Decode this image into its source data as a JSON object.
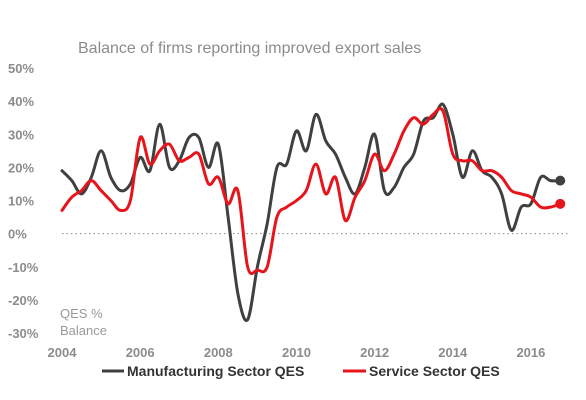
{
  "chart_data": {
    "type": "line",
    "title": "Balance of firms reporting improved export sales",
    "ylabel": "QES % Balance",
    "unit_lines": [
      "QES %",
      "Balance"
    ],
    "xlabel": "",
    "xlim": [
      2004,
      2017
    ],
    "ylim": [
      -30,
      50
    ],
    "x_ticks": [
      2004,
      2006,
      2008,
      2010,
      2012,
      2014,
      2016
    ],
    "y_ticks": [
      -30,
      -20,
      -10,
      0,
      10,
      20,
      30,
      40,
      50
    ],
    "y_tick_labels": [
      "-30%",
      "-20%",
      "-10%",
      "0%",
      "10%",
      "20%",
      "30%",
      "40%",
      "50%"
    ],
    "zero_line": "dotted",
    "grid": false,
    "legend_position": "bottom",
    "series": [
      {
        "name": "Manufacturing Sector QES",
        "color": "#404040",
        "x": [
          2004.0,
          2004.25,
          2004.5,
          2004.75,
          2005.0,
          2005.25,
          2005.5,
          2005.75,
          2006.0,
          2006.25,
          2006.5,
          2006.75,
          2007.0,
          2007.25,
          2007.5,
          2007.75,
          2008.0,
          2008.25,
          2008.5,
          2008.75,
          2009.0,
          2009.25,
          2009.5,
          2009.75,
          2010.0,
          2010.25,
          2010.5,
          2010.75,
          2011.0,
          2011.25,
          2011.5,
          2011.75,
          2012.0,
          2012.25,
          2012.5,
          2012.75,
          2013.0,
          2013.25,
          2013.5,
          2013.75,
          2014.0,
          2014.25,
          2014.5,
          2014.75,
          2015.0,
          2015.25,
          2015.5,
          2015.75,
          2016.0,
          2016.25,
          2016.5,
          2016.75
        ],
        "values": [
          19,
          16,
          12,
          17,
          25,
          17,
          13,
          15,
          23,
          19,
          33,
          20,
          22,
          29,
          29,
          20,
          27,
          5,
          -18,
          -26,
          -10,
          3,
          20,
          21,
          31,
          25,
          36,
          28,
          24,
          17,
          12,
          20,
          30,
          13,
          14,
          20,
          24,
          34,
          35,
          39,
          30,
          17,
          25,
          19,
          17,
          12,
          1,
          8,
          9,
          17,
          16,
          16
        ]
      },
      {
        "name": "Service Sector QES",
        "color": "#e8141c",
        "x": [
          2004.0,
          2004.25,
          2004.5,
          2004.75,
          2005.0,
          2005.25,
          2005.5,
          2005.75,
          2006.0,
          2006.25,
          2006.5,
          2006.75,
          2007.0,
          2007.25,
          2007.5,
          2007.75,
          2008.0,
          2008.25,
          2008.5,
          2008.75,
          2009.0,
          2009.25,
          2009.5,
          2009.75,
          2010.0,
          2010.25,
          2010.5,
          2010.75,
          2011.0,
          2011.25,
          2011.5,
          2011.75,
          2012.0,
          2012.25,
          2012.5,
          2012.75,
          2013.0,
          2013.25,
          2013.5,
          2013.75,
          2014.0,
          2014.25,
          2014.5,
          2014.75,
          2015.0,
          2015.25,
          2015.5,
          2015.75,
          2016.0,
          2016.25,
          2016.5,
          2016.75
        ],
        "values": [
          7,
          11,
          13,
          16,
          13,
          10,
          7,
          10,
          29,
          21,
          25,
          27,
          22,
          23,
          24,
          15,
          17,
          9,
          13,
          -10,
          -11,
          -10,
          5,
          8,
          10,
          13,
          21,
          12,
          17,
          4,
          11,
          16,
          24,
          19,
          24,
          31,
          35,
          33,
          36,
          37,
          24,
          22,
          22,
          19,
          19,
          17,
          13,
          12,
          11,
          8,
          8,
          9
        ]
      }
    ]
  }
}
